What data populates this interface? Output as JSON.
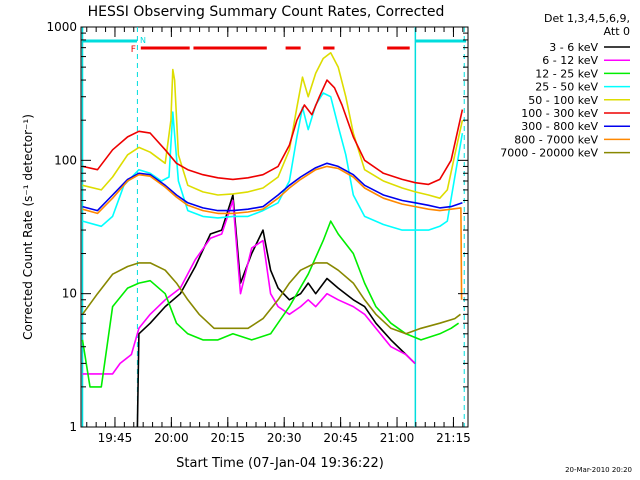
{
  "chart_data": {
    "type": "line",
    "title": "HESSI Observing Summary Count Rates, Corrected",
    "xlabel": "Start Time (07-Jan-04 19:36:22)",
    "ylabel": "Corrected Count Rate (s⁻¹ detector⁻¹)",
    "y_scale": "log",
    "ylim": [
      1,
      1000
    ],
    "xlim_minutes": [
      -0.4,
      102.5
    ],
    "y_ticks": [
      1,
      10,
      100,
      1000
    ],
    "y_tick_labels": [
      "1",
      "10",
      "100",
      "1000"
    ],
    "x_ticks_min": [
      8.63,
      23.63,
      38.63,
      53.63,
      68.63,
      83.63,
      98.63
    ],
    "x_tick_labels": [
      "19:45",
      "20:00",
      "20:15",
      "20:30",
      "20:45",
      "21:00",
      "21:15"
    ],
    "legend_header": [
      "Det 1,3,4,5,6,9,",
      "Att 0"
    ],
    "markers": {
      "N_label": "N",
      "F_label": "F",
      "night_bars_min": [
        [
          0,
          14.5
        ],
        [
          88.5,
          102
        ]
      ],
      "flare_bars_min": [
        [
          15.5,
          28.5
        ],
        [
          29.5,
          49
        ],
        [
          54,
          58
        ],
        [
          64,
          67
        ],
        [
          81,
          87
        ]
      ],
      "dashed_lines_min": [
        14.6,
        101.5
      ],
      "solid_lines_min": [
        0,
        88.5
      ]
    },
    "series": [
      {
        "name": "3 - 6 keV",
        "color": "#000000",
        "points": [
          [
            14.6,
            1.0
          ],
          [
            15,
            5.0
          ],
          [
            18,
            6.0
          ],
          [
            22,
            8.0
          ],
          [
            26,
            10.0
          ],
          [
            30,
            16.0
          ],
          [
            34,
            28.0
          ],
          [
            37,
            30.0
          ],
          [
            40,
            55.0
          ],
          [
            42,
            12.0
          ],
          [
            45,
            20.0
          ],
          [
            48,
            30.0
          ],
          [
            50,
            15.0
          ],
          [
            52,
            11.0
          ],
          [
            55,
            9.0
          ],
          [
            58,
            10.0
          ],
          [
            60,
            12.0
          ],
          [
            62,
            10.0
          ],
          [
            65,
            13.0
          ],
          [
            68,
            11.0
          ],
          [
            72,
            9.0
          ],
          [
            75,
            8.0
          ],
          [
            78,
            6.0
          ],
          [
            82,
            4.5
          ],
          [
            86,
            3.5
          ],
          [
            88.4,
            3.0
          ]
        ]
      },
      {
        "name": "6 - 12 keV",
        "color": "#ff00ff",
        "points": [
          [
            0,
            2.5
          ],
          [
            8,
            2.5
          ],
          [
            10,
            3.0
          ],
          [
            13,
            3.5
          ],
          [
            15,
            5.5
          ],
          [
            18,
            7.0
          ],
          [
            22,
            9.0
          ],
          [
            26,
            11.0
          ],
          [
            30,
            18.0
          ],
          [
            34,
            26.0
          ],
          [
            37,
            28.0
          ],
          [
            40,
            50.0
          ],
          [
            42,
            10.0
          ],
          [
            45,
            22.0
          ],
          [
            48,
            25.0
          ],
          [
            50,
            10.0
          ],
          [
            52,
            8.0
          ],
          [
            55,
            7.0
          ],
          [
            58,
            8.0
          ],
          [
            60,
            9.0
          ],
          [
            62,
            8.0
          ],
          [
            65,
            10.0
          ],
          [
            68,
            9.0
          ],
          [
            72,
            8.0
          ],
          [
            75,
            7.0
          ],
          [
            78,
            5.5
          ],
          [
            82,
            4.0
          ],
          [
            86,
            3.5
          ],
          [
            88.4,
            3.0
          ]
        ]
      },
      {
        "name": "12 - 25 keV",
        "color": "#00ee00",
        "points": [
          [
            0,
            4.5
          ],
          [
            2,
            2.0
          ],
          [
            5,
            2.0
          ],
          [
            8,
            8.0
          ],
          [
            12,
            11.0
          ],
          [
            15,
            12.0
          ],
          [
            18,
            12.5
          ],
          [
            22,
            10.0
          ],
          [
            25,
            6.0
          ],
          [
            28,
            5.0
          ],
          [
            32,
            4.5
          ],
          [
            36,
            4.5
          ],
          [
            40,
            5.0
          ],
          [
            45,
            4.5
          ],
          [
            50,
            5.0
          ],
          [
            55,
            8.0
          ],
          [
            60,
            14.0
          ],
          [
            64,
            25.0
          ],
          [
            66,
            35.0
          ],
          [
            68,
            28.0
          ],
          [
            72,
            20.0
          ],
          [
            75,
            12.0
          ],
          [
            78,
            8.0
          ],
          [
            82,
            6.0
          ],
          [
            86,
            5.0
          ],
          [
            90,
            4.5
          ],
          [
            95,
            5.0
          ],
          [
            98,
            5.5
          ],
          [
            100,
            6.0
          ]
        ]
      },
      {
        "name": "25 - 50 keV",
        "color": "#00ffff",
        "points": [
          [
            0,
            35.0
          ],
          [
            5,
            32.0
          ],
          [
            8,
            38.0
          ],
          [
            11,
            65.0
          ],
          [
            15,
            85.0
          ],
          [
            18,
            80.0
          ],
          [
            21,
            70.0
          ],
          [
            23,
            75.0
          ],
          [
            24,
            230.0
          ],
          [
            25.5,
            70.0
          ],
          [
            28,
            42.0
          ],
          [
            32,
            38.0
          ],
          [
            36,
            37.0
          ],
          [
            40,
            38.0
          ],
          [
            44,
            38.0
          ],
          [
            48,
            42.0
          ],
          [
            52,
            48.0
          ],
          [
            55,
            70.0
          ],
          [
            57,
            150.0
          ],
          [
            58.5,
            250.0
          ],
          [
            60,
            170.0
          ],
          [
            62,
            260.0
          ],
          [
            64,
            320.0
          ],
          [
            66,
            300.0
          ],
          [
            68,
            180.0
          ],
          [
            70,
            110.0
          ],
          [
            72,
            55.0
          ],
          [
            75,
            38.0
          ],
          [
            80,
            33.0
          ],
          [
            85,
            30.0
          ],
          [
            88.5,
            30.0
          ],
          [
            92,
            30.0
          ],
          [
            95,
            32.0
          ],
          [
            97,
            35.0
          ],
          [
            99,
            75.0
          ],
          [
            101,
            160.0
          ]
        ]
      },
      {
        "name": "50 - 100 keV",
        "color": "#dddd00",
        "points": [
          [
            0,
            65.0
          ],
          [
            5,
            60.0
          ],
          [
            8,
            75.0
          ],
          [
            12,
            110.0
          ],
          [
            15,
            125.0
          ],
          [
            18,
            115.0
          ],
          [
            22,
            95.0
          ],
          [
            23.5,
            200.0
          ],
          [
            24,
            480.0
          ],
          [
            24.5,
            400.0
          ],
          [
            25.5,
            110.0
          ],
          [
            28,
            65.0
          ],
          [
            32,
            58.0
          ],
          [
            36,
            55.0
          ],
          [
            40,
            56.0
          ],
          [
            44,
            58.0
          ],
          [
            48,
            62.0
          ],
          [
            52,
            75.0
          ],
          [
            55,
            120.0
          ],
          [
            57,
            250.0
          ],
          [
            58.5,
            420.0
          ],
          [
            60,
            300.0
          ],
          [
            62,
            450.0
          ],
          [
            64,
            580.0
          ],
          [
            66,
            640.0
          ],
          [
            68,
            500.0
          ],
          [
            70,
            300.0
          ],
          [
            72,
            160.0
          ],
          [
            75,
            85.0
          ],
          [
            80,
            70.0
          ],
          [
            85,
            62.0
          ],
          [
            88.5,
            58.0
          ],
          [
            92,
            55.0
          ],
          [
            95,
            52.0
          ],
          [
            97,
            60.0
          ],
          [
            99,
            110.0
          ],
          [
            101,
            200.0
          ]
        ]
      },
      {
        "name": "100 - 300 keV",
        "color": "#ee0000",
        "points": [
          [
            0,
            90.0
          ],
          [
            4,
            85.0
          ],
          [
            8,
            120.0
          ],
          [
            12,
            150.0
          ],
          [
            15,
            165.0
          ],
          [
            18,
            160.0
          ],
          [
            22,
            120.0
          ],
          [
            25,
            95.0
          ],
          [
            28,
            85.0
          ],
          [
            32,
            78.0
          ],
          [
            36,
            74.0
          ],
          [
            40,
            72.0
          ],
          [
            44,
            74.0
          ],
          [
            48,
            78.0
          ],
          [
            52,
            90.0
          ],
          [
            55,
            130.0
          ],
          [
            57,
            200.0
          ],
          [
            59,
            260.0
          ],
          [
            61,
            220.0
          ],
          [
            63,
            300.0
          ],
          [
            65,
            400.0
          ],
          [
            67,
            350.0
          ],
          [
            69,
            260.0
          ],
          [
            72,
            150.0
          ],
          [
            75,
            100.0
          ],
          [
            80,
            80.0
          ],
          [
            85,
            72.0
          ],
          [
            88.5,
            68.0
          ],
          [
            92,
            66.0
          ],
          [
            95,
            72.0
          ],
          [
            98,
            100.0
          ],
          [
            101,
            240.0
          ]
        ]
      },
      {
        "name": "300 - 800 keV",
        "color": "#0000ee",
        "points": [
          [
            0,
            45.0
          ],
          [
            4,
            42.0
          ],
          [
            8,
            55.0
          ],
          [
            12,
            72.0
          ],
          [
            15,
            80.0
          ],
          [
            18,
            78.0
          ],
          [
            22,
            65.0
          ],
          [
            25,
            55.0
          ],
          [
            28,
            48.0
          ],
          [
            32,
            44.0
          ],
          [
            36,
            42.0
          ],
          [
            40,
            42.0
          ],
          [
            44,
            43.0
          ],
          [
            48,
            45.0
          ],
          [
            52,
            55.0
          ],
          [
            55,
            65.0
          ],
          [
            58,
            75.0
          ],
          [
            62,
            88.0
          ],
          [
            65,
            95.0
          ],
          [
            68,
            90.0
          ],
          [
            72,
            78.0
          ],
          [
            75,
            65.0
          ],
          [
            80,
            55.0
          ],
          [
            85,
            50.0
          ],
          [
            88.5,
            48.0
          ],
          [
            92,
            46.0
          ],
          [
            95,
            44.0
          ],
          [
            98,
            45.0
          ],
          [
            101,
            48.0
          ]
        ]
      },
      {
        "name": "800 - 7000 keV",
        "color": "#ff8800",
        "points": [
          [
            0,
            43.0
          ],
          [
            4,
            40.0
          ],
          [
            8,
            52.0
          ],
          [
            12,
            70.0
          ],
          [
            15,
            78.0
          ],
          [
            18,
            76.0
          ],
          [
            22,
            63.0
          ],
          [
            25,
            53.0
          ],
          [
            28,
            46.0
          ],
          [
            32,
            42.0
          ],
          [
            36,
            40.0
          ],
          [
            40,
            40.0
          ],
          [
            44,
            41.0
          ],
          [
            48,
            43.0
          ],
          [
            52,
            52.0
          ],
          [
            55,
            62.0
          ],
          [
            58,
            72.0
          ],
          [
            62,
            85.0
          ],
          [
            65,
            90.0
          ],
          [
            68,
            87.0
          ],
          [
            72,
            75.0
          ],
          [
            75,
            62.0
          ],
          [
            80,
            52.0
          ],
          [
            85,
            47.0
          ],
          [
            88.5,
            45.0
          ],
          [
            92,
            43.0
          ],
          [
            95,
            42.0
          ],
          [
            98,
            43.0
          ],
          [
            100.6,
            44.0
          ],
          [
            100.8,
            9.0
          ]
        ]
      },
      {
        "name": "7000 - 20000 keV",
        "color": "#888800",
        "points": [
          [
            0,
            7.0
          ],
          [
            4,
            10.0
          ],
          [
            8,
            14.0
          ],
          [
            12,
            16.0
          ],
          [
            15,
            17.0
          ],
          [
            18,
            17.0
          ],
          [
            22,
            15.0
          ],
          [
            25,
            12.0
          ],
          [
            28,
            9.0
          ],
          [
            31,
            7.0
          ],
          [
            35,
            5.5
          ],
          [
            40,
            5.5
          ],
          [
            44,
            5.5
          ],
          [
            48,
            6.5
          ],
          [
            52,
            9.0
          ],
          [
            55,
            12.0
          ],
          [
            58,
            15.0
          ],
          [
            62,
            17.0
          ],
          [
            65,
            17.0
          ],
          [
            68,
            15.0
          ],
          [
            72,
            12.0
          ],
          [
            75,
            9.0
          ],
          [
            78,
            7.0
          ],
          [
            82,
            5.5
          ],
          [
            86,
            5.0
          ],
          [
            90,
            5.5
          ],
          [
            95,
            6.0
          ],
          [
            99,
            6.5
          ],
          [
            100.5,
            7.0
          ]
        ]
      }
    ]
  },
  "footer": {
    "timestamp": "20-Mar-2010 20:20"
  }
}
